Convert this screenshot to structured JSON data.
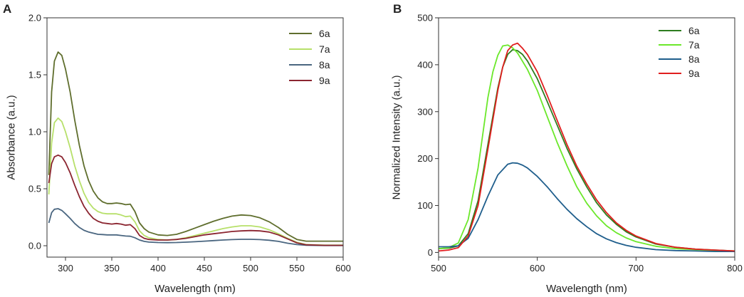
{
  "chart_data": [
    {
      "panel": "A",
      "type": "line",
      "title": "",
      "xlabel": "Wavelength (nm)",
      "ylabel": "Absorbance (a.u.)",
      "xlim": [
        280,
        600
      ],
      "ylim": [
        -0.1,
        2.0
      ],
      "xticks": [
        300,
        350,
        400,
        450,
        500,
        550,
        600
      ],
      "xtick_labels": [
        "300",
        "350",
        "400",
        "450",
        "500",
        "550",
        "600"
      ],
      "yticks": [
        0.0,
        0.5,
        1.0,
        1.5,
        2.0
      ],
      "ytick_labels": [
        "0.0",
        "0.5",
        "1.0",
        "1.5",
        "2.0"
      ],
      "legend_position": "top-right",
      "grid": false,
      "series": [
        {
          "name": "6a",
          "color": "#5f6e2d",
          "x": [
            282,
            285,
            288,
            292,
            296,
            300,
            305,
            310,
            315,
            320,
            325,
            330,
            335,
            340,
            345,
            350,
            355,
            360,
            365,
            370,
            375,
            380,
            385,
            390,
            400,
            410,
            420,
            430,
            440,
            450,
            460,
            470,
            480,
            490,
            500,
            510,
            520,
            530,
            540,
            550,
            560,
            580,
            600
          ],
          "y": [
            0.62,
            1.35,
            1.62,
            1.7,
            1.67,
            1.55,
            1.35,
            1.1,
            0.88,
            0.7,
            0.57,
            0.48,
            0.42,
            0.385,
            0.37,
            0.37,
            0.375,
            0.37,
            0.36,
            0.365,
            0.3,
            0.2,
            0.15,
            0.12,
            0.095,
            0.09,
            0.1,
            0.125,
            0.155,
            0.185,
            0.215,
            0.24,
            0.26,
            0.27,
            0.265,
            0.245,
            0.21,
            0.16,
            0.1,
            0.055,
            0.04,
            0.04,
            0.04
          ]
        },
        {
          "name": "7a",
          "color": "#b7e06a",
          "x": [
            282,
            285,
            288,
            292,
            296,
            300,
            305,
            310,
            315,
            320,
            325,
            330,
            335,
            340,
            345,
            350,
            355,
            360,
            365,
            370,
            375,
            380,
            385,
            390,
            400,
            410,
            420,
            430,
            440,
            450,
            460,
            470,
            480,
            490,
            500,
            510,
            520,
            530,
            540,
            550,
            560,
            580,
            600
          ],
          "y": [
            0.45,
            0.9,
            1.08,
            1.12,
            1.09,
            1.0,
            0.86,
            0.7,
            0.57,
            0.46,
            0.38,
            0.33,
            0.3,
            0.285,
            0.28,
            0.28,
            0.28,
            0.27,
            0.255,
            0.26,
            0.21,
            0.13,
            0.09,
            0.07,
            0.055,
            0.05,
            0.055,
            0.07,
            0.09,
            0.11,
            0.13,
            0.15,
            0.165,
            0.175,
            0.175,
            0.165,
            0.14,
            0.105,
            0.065,
            0.03,
            0.01,
            0.005,
            0.005
          ]
        },
        {
          "name": "8a",
          "color": "#4a6680",
          "x": [
            282,
            285,
            288,
            292,
            296,
            300,
            305,
            310,
            315,
            320,
            325,
            330,
            335,
            340,
            345,
            350,
            355,
            360,
            365,
            370,
            375,
            380,
            385,
            390,
            400,
            410,
            420,
            430,
            440,
            450,
            460,
            470,
            480,
            490,
            500,
            510,
            520,
            530,
            540,
            550,
            560,
            580,
            600
          ],
          "y": [
            0.2,
            0.29,
            0.32,
            0.325,
            0.31,
            0.28,
            0.24,
            0.195,
            0.16,
            0.135,
            0.12,
            0.11,
            0.1,
            0.098,
            0.095,
            0.095,
            0.095,
            0.09,
            0.085,
            0.083,
            0.07,
            0.05,
            0.038,
            0.032,
            0.028,
            0.027,
            0.028,
            0.031,
            0.035,
            0.04,
            0.045,
            0.05,
            0.054,
            0.056,
            0.056,
            0.054,
            0.048,
            0.038,
            0.022,
            0.01,
            0.004,
            0.002,
            0.002
          ]
        },
        {
          "name": "9a",
          "color": "#8b2530",
          "x": [
            282,
            285,
            288,
            292,
            296,
            300,
            305,
            310,
            315,
            320,
            325,
            330,
            335,
            340,
            345,
            350,
            355,
            360,
            365,
            370,
            375,
            380,
            385,
            390,
            400,
            410,
            420,
            430,
            440,
            450,
            460,
            470,
            480,
            490,
            500,
            510,
            520,
            530,
            540,
            550,
            560,
            580,
            600
          ],
          "y": [
            0.55,
            0.72,
            0.78,
            0.795,
            0.78,
            0.73,
            0.64,
            0.53,
            0.43,
            0.345,
            0.285,
            0.24,
            0.215,
            0.2,
            0.195,
            0.19,
            0.195,
            0.19,
            0.18,
            0.185,
            0.15,
            0.09,
            0.065,
            0.055,
            0.05,
            0.05,
            0.055,
            0.065,
            0.08,
            0.095,
            0.105,
            0.115,
            0.125,
            0.13,
            0.133,
            0.13,
            0.12,
            0.095,
            0.06,
            0.025,
            0.008,
            0.003,
            0.003
          ]
        }
      ]
    },
    {
      "panel": "B",
      "type": "line",
      "title": "",
      "xlabel": "Wavelength (nm)",
      "ylabel": "Normalized Intensity (a.u.)",
      "xlim": [
        500,
        800
      ],
      "ylim": [
        -10,
        500
      ],
      "xticks": [
        500,
        600,
        700,
        800
      ],
      "xtick_labels": [
        "500",
        "600",
        "700",
        "800"
      ],
      "yticks": [
        0,
        100,
        200,
        300,
        400,
        500
      ],
      "ytick_labels": [
        "0",
        "100",
        "200",
        "300",
        "400",
        "500"
      ],
      "legend_position": "top-right",
      "grid": false,
      "series": [
        {
          "name": "6a",
          "color": "#2e7d1f",
          "x": [
            500,
            510,
            520,
            530,
            540,
            550,
            560,
            565,
            570,
            575,
            580,
            585,
            590,
            600,
            610,
            620,
            630,
            640,
            650,
            660,
            670,
            680,
            690,
            700,
            720,
            740,
            760,
            780,
            800
          ],
          "y": [
            8,
            9,
            14,
            40,
            110,
            230,
            350,
            395,
            422,
            432,
            430,
            422,
            408,
            370,
            322,
            272,
            222,
            178,
            140,
            106,
            80,
            60,
            44,
            33,
            18,
            11,
            7,
            5,
            3
          ]
        },
        {
          "name": "7a",
          "color": "#6be82a",
          "x": [
            500,
            510,
            520,
            530,
            540,
            550,
            555,
            560,
            565,
            570,
            575,
            580,
            590,
            600,
            610,
            620,
            630,
            640,
            650,
            660,
            670,
            680,
            690,
            700,
            720,
            740,
            760,
            780,
            800
          ],
          "y": [
            8,
            10,
            20,
            70,
            180,
            330,
            385,
            420,
            440,
            442,
            436,
            425,
            390,
            345,
            290,
            235,
            185,
            140,
            105,
            78,
            57,
            42,
            31,
            23,
            13,
            8,
            6,
            4,
            3
          ]
        },
        {
          "name": "8a",
          "color": "#1f5e8c",
          "x": [
            500,
            510,
            520,
            530,
            540,
            550,
            560,
            570,
            575,
            580,
            585,
            590,
            600,
            610,
            620,
            630,
            640,
            650,
            660,
            670,
            680,
            690,
            700,
            720,
            740,
            760,
            780,
            800
          ],
          "y": [
            12,
            12,
            14,
            30,
            70,
            120,
            165,
            188,
            191,
            190,
            186,
            180,
            162,
            140,
            115,
            92,
            72,
            55,
            40,
            29,
            21,
            15,
            11,
            6,
            4,
            3,
            2,
            2
          ]
        },
        {
          "name": "9a",
          "color": "#e01e1e",
          "x": [
            500,
            510,
            520,
            530,
            540,
            550,
            560,
            565,
            570,
            575,
            580,
            585,
            590,
            600,
            610,
            620,
            630,
            640,
            650,
            660,
            670,
            680,
            690,
            700,
            720,
            740,
            760,
            780,
            800
          ],
          "y": [
            3,
            5,
            10,
            35,
            100,
            220,
            345,
            395,
            430,
            442,
            446,
            435,
            422,
            385,
            335,
            282,
            230,
            184,
            146,
            112,
            85,
            63,
            47,
            35,
            19,
            11,
            7,
            5,
            3
          ]
        }
      ]
    }
  ]
}
